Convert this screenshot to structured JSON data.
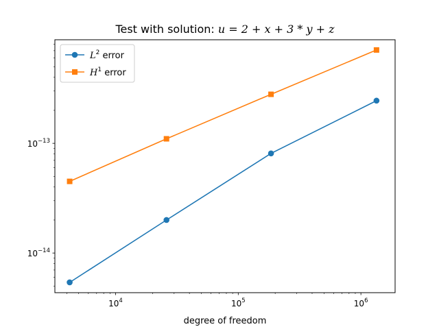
{
  "chart_data": {
    "type": "line",
    "title": {
      "text": "Test with solution: ",
      "math": "u = 2 + x + 3 * y + z"
    },
    "xlabel": "degree of freedom",
    "ylabel": "",
    "xscale": "log",
    "yscale": "log",
    "xlim": [
      3200,
      1900000
    ],
    "ylim": [
      4.35e-15,
      8.8e-13
    ],
    "x_ticks": [
      {
        "value": 10000,
        "base": "10",
        "exp": "4"
      },
      {
        "value": 100000,
        "base": "10",
        "exp": "5"
      },
      {
        "value": 1000000,
        "base": "10",
        "exp": "6"
      }
    ],
    "y_ticks": [
      {
        "value": 1e-14,
        "base": "10",
        "exp": "−14"
      },
      {
        "value": 1e-13,
        "base": "10",
        "exp": "−13"
      }
    ],
    "grid": false,
    "legend": {
      "position": "top-left"
    },
    "series": [
      {
        "name": "L² error",
        "name_base": "L",
        "name_sup": "2",
        "name_rest": " error",
        "color": "#1f77b4",
        "marker": "circle",
        "x": [
          4224,
          26000,
          185000,
          1340000
        ],
        "y": [
          5.4e-15,
          2e-14,
          8.1e-14,
          2.45e-13
        ]
      },
      {
        "name": "H¹ error",
        "name_base": "H",
        "name_sup": "1",
        "name_rest": " error",
        "color": "#ff7f0e",
        "marker": "square",
        "x": [
          4224,
          26000,
          185000,
          1340000
        ],
        "y": [
          4.5e-14,
          1.1e-13,
          2.8e-13,
          7.1e-13
        ]
      }
    ]
  }
}
